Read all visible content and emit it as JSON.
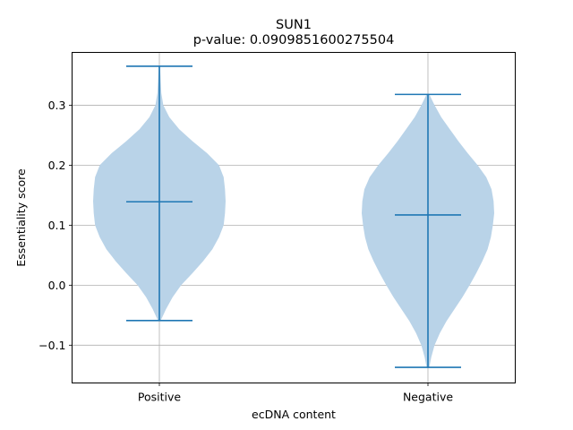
{
  "chart_data": {
    "type": "violin",
    "title": "SUN1",
    "subtitle": "p-value: 0.0909851600275504",
    "xlabel": "ecDNA content",
    "ylabel": "Essentiality score",
    "categories": [
      "Positive",
      "Negative"
    ],
    "ylim": [
      -0.163,
      0.388
    ],
    "yticks": [
      -0.1,
      0.0,
      0.1,
      0.2,
      0.3
    ],
    "ytick_labels": [
      "−0.1",
      "0.0",
      "0.1",
      "0.2",
      "0.3"
    ],
    "grid": true,
    "color": "#1f77b4",
    "fill_color": "#b9d3e8",
    "violins": [
      {
        "category": "Positive",
        "min": -0.059,
        "mean": 0.139,
        "max": 0.365,
        "profile": [
          [
            -0.059,
            0.02
          ],
          [
            -0.04,
            0.1
          ],
          [
            -0.02,
            0.2
          ],
          [
            0.0,
            0.33
          ],
          [
            0.02,
            0.5
          ],
          [
            0.04,
            0.66
          ],
          [
            0.06,
            0.8
          ],
          [
            0.08,
            0.9
          ],
          [
            0.1,
            0.97
          ],
          [
            0.12,
            0.99
          ],
          [
            0.14,
            1.0
          ],
          [
            0.16,
            0.99
          ],
          [
            0.18,
            0.97
          ],
          [
            0.2,
            0.9
          ],
          [
            0.22,
            0.72
          ],
          [
            0.24,
            0.5
          ],
          [
            0.26,
            0.3
          ],
          [
            0.28,
            0.15
          ],
          [
            0.3,
            0.06
          ],
          [
            0.32,
            0.03
          ],
          [
            0.34,
            0.02
          ],
          [
            0.365,
            0.01
          ]
        ]
      },
      {
        "category": "Negative",
        "min": -0.137,
        "mean": 0.117,
        "max": 0.318,
        "profile": [
          [
            -0.137,
            0.02
          ],
          [
            -0.12,
            0.05
          ],
          [
            -0.1,
            0.1
          ],
          [
            -0.08,
            0.18
          ],
          [
            -0.06,
            0.28
          ],
          [
            -0.04,
            0.4
          ],
          [
            -0.02,
            0.52
          ],
          [
            0.0,
            0.63
          ],
          [
            0.02,
            0.73
          ],
          [
            0.04,
            0.82
          ],
          [
            0.06,
            0.9
          ],
          [
            0.08,
            0.95
          ],
          [
            0.1,
            0.98
          ],
          [
            0.12,
            1.0
          ],
          [
            0.14,
            0.99
          ],
          [
            0.16,
            0.96
          ],
          [
            0.18,
            0.88
          ],
          [
            0.2,
            0.75
          ],
          [
            0.22,
            0.6
          ],
          [
            0.24,
            0.46
          ],
          [
            0.26,
            0.33
          ],
          [
            0.28,
            0.2
          ],
          [
            0.3,
            0.1
          ],
          [
            0.318,
            0.02
          ]
        ]
      }
    ]
  }
}
